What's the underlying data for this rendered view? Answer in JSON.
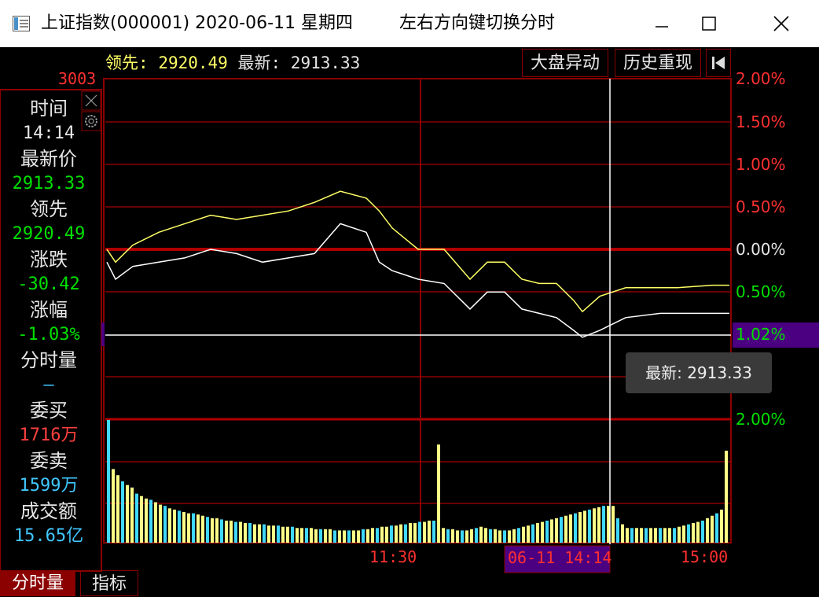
{
  "window": {
    "title": "上证指数(000001) 2020-06-11 星期四",
    "hint": "左右方向键切换分时",
    "controls": [
      "minimize",
      "maximize",
      "close"
    ]
  },
  "header_bar": {
    "lead_label": "领先:",
    "lead_value": "2920.49",
    "latest_label": "最新:",
    "latest_value": "2913.33",
    "buttons": [
      "大盘异动",
      "历史重现"
    ],
    "back_icon": "skip-back-icon"
  },
  "sidebar": {
    "top_price": "3003",
    "fields": [
      {
        "label": "时间",
        "value": "14:14",
        "value_color": "#e6e6e6"
      },
      {
        "label": "最新价",
        "value": "2913.33",
        "value_color": "#00e000"
      },
      {
        "label": "领先",
        "value": "2920.49",
        "value_color": "#00e000"
      },
      {
        "label": "涨跌",
        "value": "-30.42",
        "value_color": "#00e000"
      },
      {
        "label": "涨幅",
        "value": "-1.03%",
        "value_color": "#00e000"
      },
      {
        "label": "分时量",
        "value": "—",
        "value_color": "#40c8ff"
      },
      {
        "label": "委买",
        "value": "1716万",
        "value_color": "#ff4040"
      },
      {
        "label": "委卖",
        "value": "1599万",
        "value_color": "#40c8ff"
      },
      {
        "label": "成交额",
        "value": "15.65亿",
        "value_color": "#40c8ff"
      }
    ]
  },
  "chart_data": {
    "type": "line",
    "x_ticks": [
      "11:30",
      "15:00"
    ],
    "cursor_time": "06-11 14:14",
    "right_axis_labels": [
      {
        "text": "2.00%",
        "color": "#ff3030"
      },
      {
        "text": "1.50%",
        "color": "#ff3030"
      },
      {
        "text": "1.00%",
        "color": "#ff3030"
      },
      {
        "text": "0.50%",
        "color": "#ff3030"
      },
      {
        "text": "0.00%",
        "color": "#e6e6e6"
      },
      {
        "text": "0.50%",
        "color": "#00e000"
      },
      {
        "text": "2.00%",
        "color": "#00e000"
      }
    ],
    "cursor_pct": "1.02%",
    "tooltip": "最新: 2913.33",
    "series": [
      {
        "color": "#ffff66",
        "points": [
          [
            0,
            0.0
          ],
          [
            10,
            -0.15
          ],
          [
            30,
            0.05
          ],
          [
            60,
            0.2
          ],
          [
            90,
            0.3
          ],
          [
            120,
            0.4
          ],
          [
            150,
            0.35
          ],
          [
            180,
            0.4
          ],
          [
            210,
            0.45
          ],
          [
            240,
            0.55
          ],
          [
            270,
            0.68
          ],
          [
            300,
            0.6
          ],
          [
            315,
            0.45
          ],
          [
            330,
            0.25
          ],
          [
            360,
            0.0
          ],
          [
            390,
            0.0
          ],
          [
            420,
            -0.35
          ],
          [
            440,
            -0.15
          ],
          [
            460,
            -0.15
          ],
          [
            480,
            -0.35
          ],
          [
            500,
            -0.4
          ],
          [
            520,
            -0.4
          ],
          [
            540,
            -0.6
          ],
          [
            550,
            -0.73
          ],
          [
            570,
            -0.55
          ],
          [
            600,
            -0.45
          ],
          [
            640,
            -0.45
          ],
          [
            660,
            -0.45
          ],
          [
            700,
            -0.42
          ],
          [
            720,
            -0.42
          ]
        ]
      },
      {
        "color": "#ffffff",
        "points": [
          [
            0,
            -0.15
          ],
          [
            10,
            -0.35
          ],
          [
            30,
            -0.2
          ],
          [
            60,
            -0.15
          ],
          [
            90,
            -0.1
          ],
          [
            120,
            0.0
          ],
          [
            150,
            -0.05
          ],
          [
            180,
            -0.15
          ],
          [
            210,
            -0.1
          ],
          [
            240,
            -0.05
          ],
          [
            270,
            0.3
          ],
          [
            300,
            0.2
          ],
          [
            315,
            -0.15
          ],
          [
            330,
            -0.25
          ],
          [
            360,
            -0.35
          ],
          [
            390,
            -0.4
          ],
          [
            420,
            -0.7
          ],
          [
            440,
            -0.5
          ],
          [
            460,
            -0.5
          ],
          [
            480,
            -0.7
          ],
          [
            500,
            -0.75
          ],
          [
            520,
            -0.8
          ],
          [
            540,
            -0.95
          ],
          [
            550,
            -1.03
          ],
          [
            570,
            -0.95
          ],
          [
            600,
            -0.8
          ],
          [
            640,
            -0.75
          ],
          [
            660,
            -0.75
          ],
          [
            700,
            -0.75
          ],
          [
            720,
            -0.75
          ]
        ]
      }
    ],
    "volume_bars": [
      1.0,
      0.6,
      0.55,
      0.5,
      0.47,
      0.45,
      0.4,
      0.38,
      0.36,
      0.35,
      0.33,
      0.31,
      0.3,
      0.28,
      0.27,
      0.26,
      0.25,
      0.24,
      0.24,
      0.23,
      0.22,
      0.21,
      0.2,
      0.2,
      0.19,
      0.18,
      0.18,
      0.17,
      0.17,
      0.16,
      0.16,
      0.15,
      0.15,
      0.15,
      0.14,
      0.14,
      0.14,
      0.13,
      0.13,
      0.13,
      0.12,
      0.12,
      0.12,
      0.12,
      0.11,
      0.11,
      0.11,
      0.11,
      0.1,
      0.1,
      0.1,
      0.1,
      0.1,
      0.1,
      0.11,
      0.11,
      0.12,
      0.12,
      0.13,
      0.13,
      0.14,
      0.14,
      0.15,
      0.15,
      0.16,
      0.16,
      0.17,
      0.17,
      0.18,
      0.18,
      0.8,
      0.12,
      0.11,
      0.11,
      0.1,
      0.1,
      0.1,
      0.11,
      0.12,
      0.13,
      0.12,
      0.11,
      0.11,
      0.1,
      0.1,
      0.1,
      0.11,
      0.12,
      0.13,
      0.14,
      0.15,
      0.16,
      0.17,
      0.18,
      0.19,
      0.2,
      0.21,
      0.22,
      0.23,
      0.24,
      0.25,
      0.26,
      0.27,
      0.28,
      0.29,
      0.3,
      0.3,
      0.3,
      0.2,
      0.15,
      0.12,
      0.12,
      0.12,
      0.12,
      0.12,
      0.12,
      0.12,
      0.12,
      0.12,
      0.12,
      0.12,
      0.13,
      0.14,
      0.15,
      0.16,
      0.17,
      0.18,
      0.2,
      0.22,
      0.24,
      0.27,
      0.75
    ]
  },
  "bottom_tabs": [
    "分时量",
    "指标"
  ]
}
